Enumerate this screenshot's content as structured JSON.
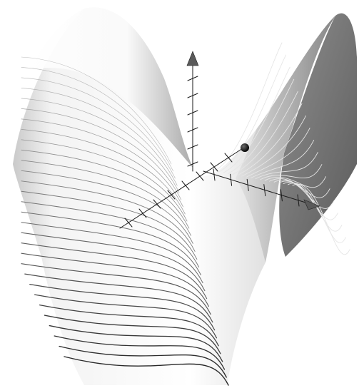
{
  "scene": {
    "kind": "3d-surface-render",
    "shading_color": "#f4f4f4",
    "dark_shading_color": "#6f6f6f",
    "contour_color": "#1c1c1c",
    "axis_color": "#1a1a1a",
    "arrowhead_color": "#5a5a5a",
    "background": "#ffffff",
    "contour_line_count": 30,
    "axes": [
      "z-axis-up",
      "x-axis-right",
      "y-axis-back"
    ],
    "marker": "sphere"
  }
}
